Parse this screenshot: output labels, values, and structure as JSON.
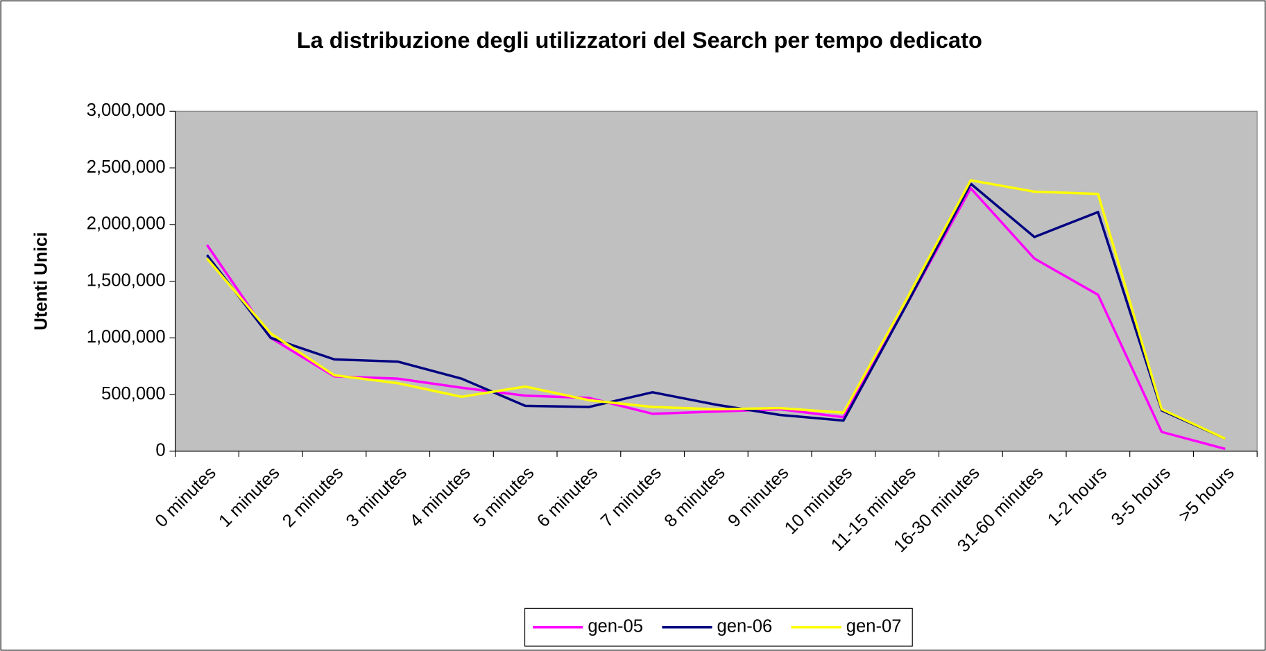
{
  "chart_data": {
    "type": "line",
    "title": "La distribuzione degli utilizzatori del Search per tempo dedicato",
    "y_label": "Utenti Unici",
    "categories": [
      "0 minutes",
      "1 minutes",
      "2 minutes",
      "3 minutes",
      "4 minutes",
      "5 minutes",
      "6 minutes",
      "7 minutes",
      "8 minutes",
      "9 minutes",
      "10 minutes",
      "11-15 minutes",
      "16-30 minutes",
      "31-60 minutes",
      "1-2 hours",
      "3-5 hours",
      ">5 hours"
    ],
    "series": [
      {
        "name": "gen-05",
        "color": "#ff00ff",
        "values": [
          1820000,
          1000000,
          660000,
          640000,
          560000,
          490000,
          470000,
          330000,
          350000,
          370000,
          300000,
          1300000,
          2320000,
          1700000,
          1380000,
          170000,
          20000
        ]
      },
      {
        "name": "gen-06",
        "color": "#000080",
        "values": [
          1730000,
          1000000,
          810000,
          790000,
          640000,
          400000,
          390000,
          520000,
          410000,
          320000,
          270000,
          1300000,
          2360000,
          1890000,
          2110000,
          360000,
          110000
        ]
      },
      {
        "name": "gen-07",
        "color": "#ffff00",
        "values": [
          1700000,
          1040000,
          670000,
          600000,
          480000,
          570000,
          450000,
          390000,
          370000,
          380000,
          340000,
          1350000,
          2390000,
          2290000,
          2270000,
          370000,
          110000
        ]
      }
    ],
    "ylim": [
      0,
      3000000
    ],
    "yticks": [
      0,
      {
        "value": 500000,
        "label": "500,000"
      },
      {
        "value": 1000000,
        "label": "1,000,000"
      },
      {
        "value": 1500000,
        "label": "1,500,000"
      },
      {
        "value": 2000000,
        "label": "2,000,000"
      },
      {
        "value": 2500000,
        "label": "2,500,000"
      },
      {
        "value": 3000000,
        "label": "3,000,000"
      }
    ],
    "legend": "bottom"
  }
}
